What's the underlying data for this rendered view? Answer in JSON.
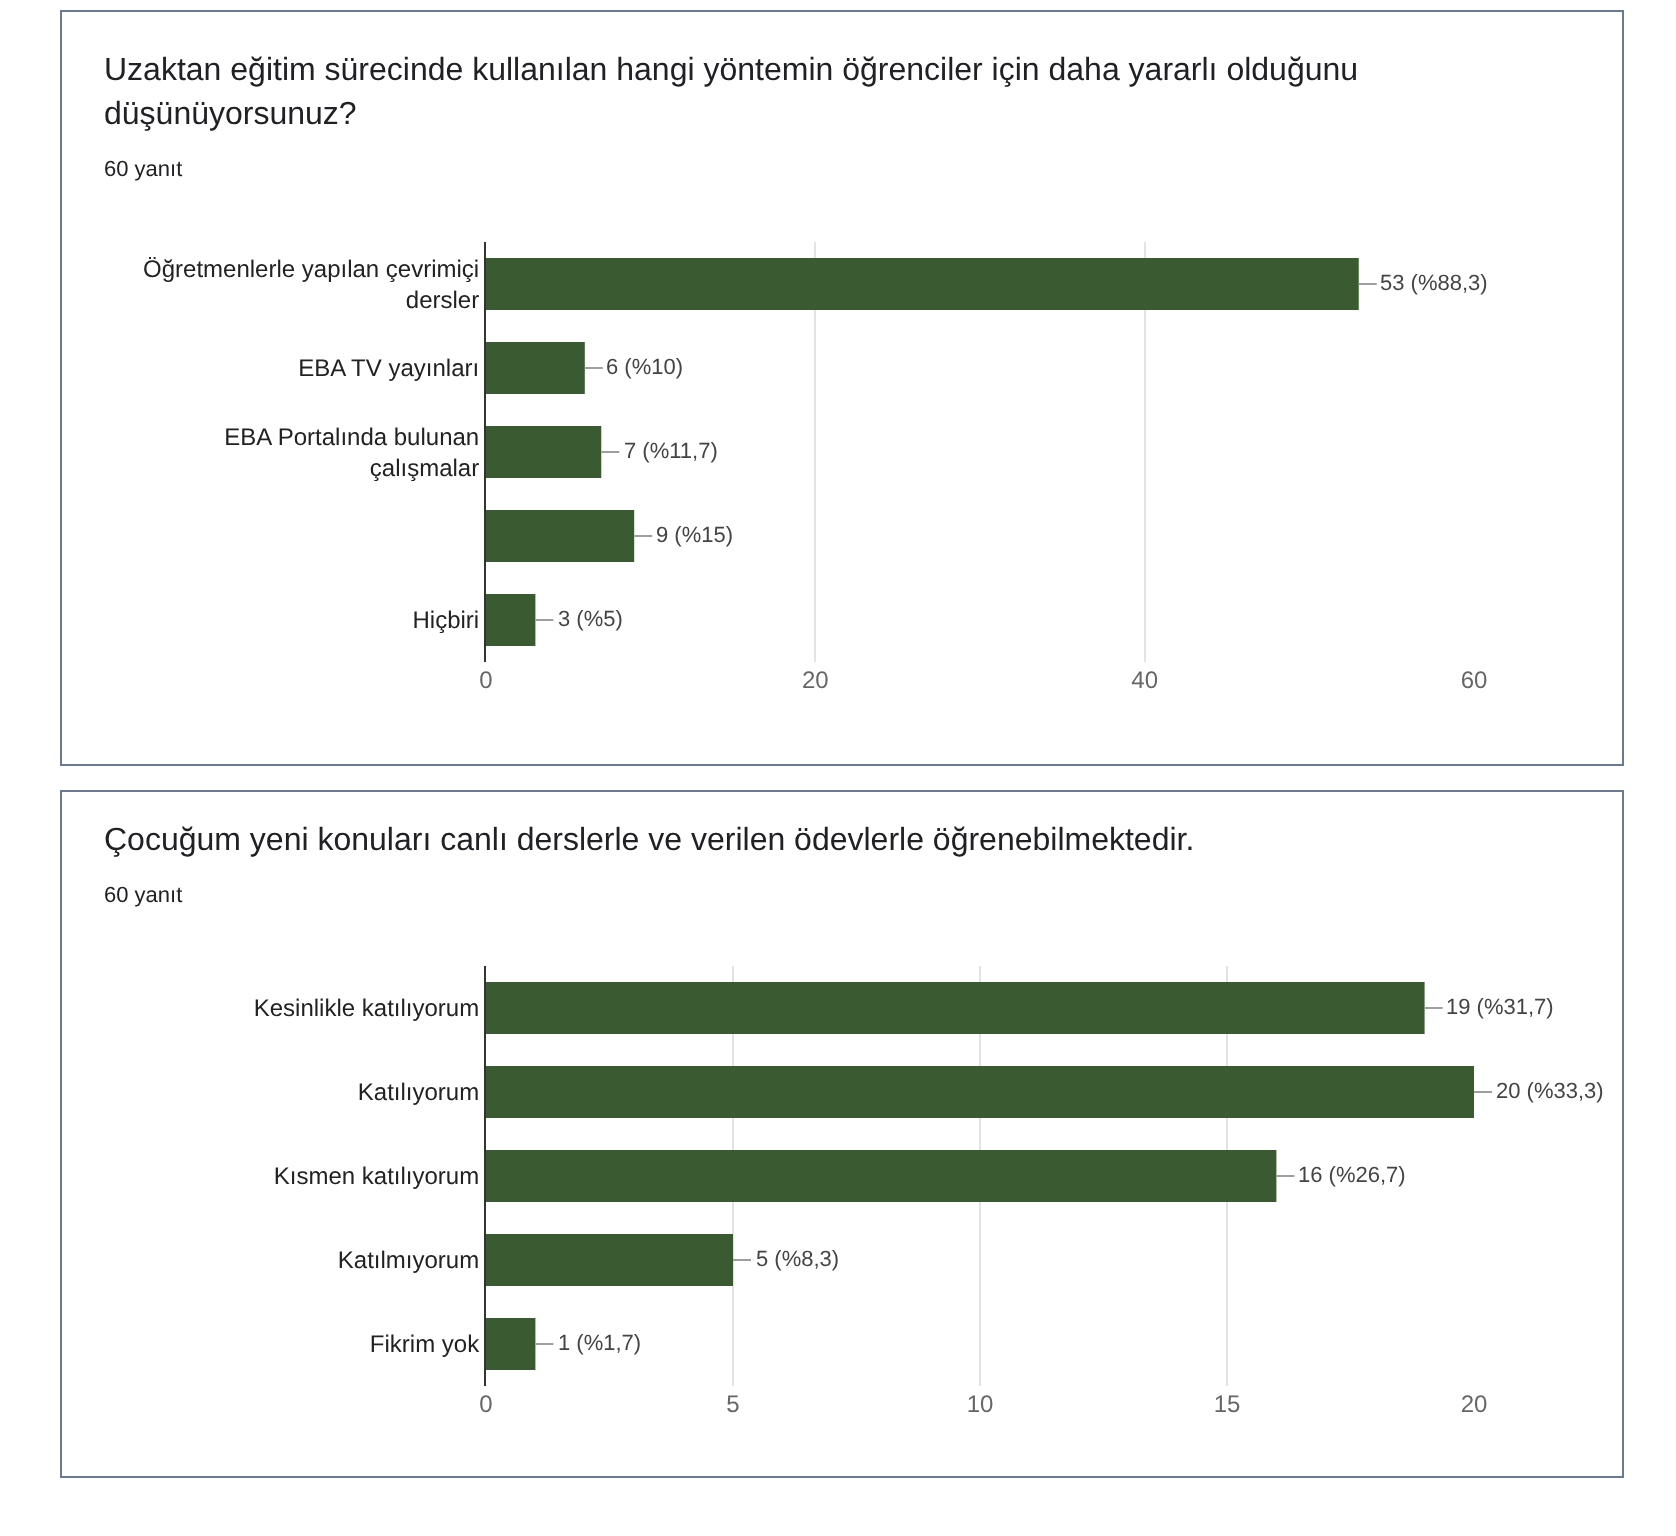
{
  "chart_data": [
    {
      "type": "bar",
      "orientation": "horizontal",
      "title": "Uzaktan eğitim sürecinde kullanılan hangi yöntemin öğrenciler için daha yararlı olduğunu düşünüyorsunuz?",
      "subtitle": "60 yanıt",
      "categories": [
        "Öğretmenlerle yapılan çevrimiçi dersler",
        "EBA TV yayınları",
        "EBA Portalında bulunan çalışmalar",
        null,
        "Hiçbiri"
      ],
      "values": [
        53,
        6,
        7,
        9,
        3
      ],
      "value_labels": [
        "53 (%88,3)",
        "6 (%10)",
        "7 (%11,7)",
        "9 (%15)",
        "3 (%5)"
      ],
      "color": "#3a5a32",
      "xlim": [
        0,
        60
      ],
      "xticks": [
        0,
        20,
        40,
        60
      ],
      "grid": "x"
    },
    {
      "type": "bar",
      "orientation": "horizontal",
      "title": "Çocuğum yeni konuları canlı derslerle ve verilen ödevlerle öğrenebilmektedir.",
      "subtitle": "60 yanıt",
      "categories": [
        "Kesinlikle katılıyorum",
        "Katılıyorum",
        "Kısmen katılıyorum",
        "Katılmıyorum",
        "Fikrim yok"
      ],
      "values": [
        19,
        20,
        16,
        5,
        1
      ],
      "value_labels": [
        "19 (%31,7)",
        "20 (%33,3)",
        "16 (%26,7)",
        "5 (%8,3)",
        "1 (%1,7)"
      ],
      "color": "#3a5a32",
      "xlim": [
        0,
        20
      ],
      "xticks": [
        0,
        5,
        10,
        15,
        20
      ],
      "grid": "x"
    }
  ]
}
